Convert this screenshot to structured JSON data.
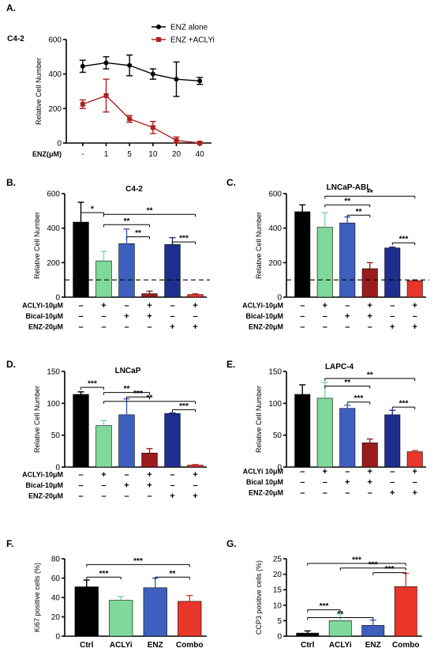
{
  "chart_data": [
    {
      "panel": "A.",
      "type": "line",
      "title": "C4-2",
      "ylabel": "Relative Cell Number",
      "xlabel": "ENZ(μM)",
      "categories": [
        "-",
        "1",
        "5",
        "10",
        "20",
        "40"
      ],
      "ylim": [
        0,
        600
      ],
      "yticks": [
        "0",
        "200",
        "400",
        "600"
      ],
      "series": [
        {
          "name": "ENZ alone",
          "color": "#000000",
          "marker": "circle",
          "values": [
            445,
            465,
            450,
            400,
            370,
            360
          ],
          "errors": [
            35,
            35,
            60,
            30,
            100,
            20
          ]
        },
        {
          "name": "ENZ +ACLYi",
          "color": "#b02020",
          "marker": "square",
          "values": [
            225,
            275,
            140,
            90,
            15,
            0
          ],
          "errors": [
            25,
            95,
            20,
            35,
            20,
            5
          ]
        }
      ]
    },
    {
      "panel": "B.",
      "type": "bar",
      "title": "C4-2",
      "ylabel": "Relative Cell Number",
      "ylim": [
        0,
        600
      ],
      "yticks": [
        "0",
        "200",
        "400",
        "600"
      ],
      "dashed_ref": 100,
      "values": [
        435,
        210,
        310,
        20,
        305,
        15
      ],
      "errors": [
        115,
        55,
        85,
        15,
        40,
        5
      ],
      "colors": [
        "#000000",
        "#7fd99a",
        "#3f5fbf",
        "#9b1c1c",
        "#1f2f8f",
        "#e8362a"
      ],
      "treatments": [
        {
          "label": "ACLYi-10μM",
          "marks": [
            "–",
            "+",
            "–",
            "+",
            "–",
            "+"
          ]
        },
        {
          "label": "Bical-10μM",
          "marks": [
            "–",
            "–",
            "+",
            "+",
            "–",
            "–"
          ]
        },
        {
          "label": "ENZ-20μM",
          "marks": [
            "–",
            "–",
            "–",
            "–",
            "+",
            "+"
          ]
        }
      ],
      "comparisons": [
        {
          "from": 0,
          "to": 1,
          "y": 490,
          "label": "*"
        },
        {
          "from": 1,
          "to": 3,
          "y": 420,
          "label": "**"
        },
        {
          "from": 2,
          "to": 3,
          "y": 350,
          "label": "**"
        },
        {
          "from": 1,
          "to": 5,
          "y": 480,
          "label": "**"
        },
        {
          "from": 4,
          "to": 5,
          "y": 320,
          "label": "***"
        }
      ]
    },
    {
      "panel": "C.",
      "type": "bar",
      "title": "LNCaP-ABL",
      "ylabel": "Relative Cell Number",
      "ylim": [
        0,
        600
      ],
      "yticks": [
        "0",
        "200",
        "400",
        "600"
      ],
      "dashed_ref": 100,
      "values": [
        495,
        405,
        430,
        165,
        285,
        95
      ],
      "errors": [
        40,
        85,
        35,
        35,
        5,
        5
      ],
      "colors": [
        "#000000",
        "#7fd99a",
        "#3f5fbf",
        "#9b1c1c",
        "#1f2f8f",
        "#e8362a"
      ],
      "treatments": [
        {
          "label": "ACLYi-10μM",
          "marks": [
            "–",
            "+",
            "–",
            "+",
            "–",
            "+"
          ]
        },
        {
          "label": "Bical-10μM",
          "marks": [
            "–",
            "–",
            "+",
            "+",
            "–",
            "–"
          ]
        },
        {
          "label": "ENZ-20μM",
          "marks": [
            "–",
            "–",
            "–",
            "–",
            "+",
            "+"
          ]
        }
      ],
      "comparisons": [
        {
          "from": 1,
          "to": 5,
          "y": 585,
          "label": "**"
        },
        {
          "from": 1,
          "to": 3,
          "y": 535,
          "label": "**"
        },
        {
          "from": 2,
          "to": 3,
          "y": 475,
          "label": "**"
        },
        {
          "from": 4,
          "to": 5,
          "y": 315,
          "label": "***"
        }
      ]
    },
    {
      "panel": "D.",
      "type": "bar",
      "title": "LNCaP",
      "ylabel": "Relative Cell Number",
      "ylim": [
        0,
        150
      ],
      "yticks": [
        "0",
        "50",
        "100",
        "150"
      ],
      "values": [
        114,
        65,
        82,
        22,
        84,
        3
      ],
      "errors": [
        4,
        8,
        25,
        7,
        1,
        1
      ],
      "colors": [
        "#000000",
        "#7fd99a",
        "#3f5fbf",
        "#9b1c1c",
        "#1f2f8f",
        "#e8362a"
      ],
      "treatments": [
        {
          "label": "ACLYi-10μM",
          "marks": [
            "–",
            "+",
            "–",
            "+",
            "–",
            "+"
          ]
        },
        {
          "label": "Bical-10μM",
          "marks": [
            "–",
            "–",
            "+",
            "+",
            "–",
            "–"
          ]
        },
        {
          "label": "ENZ-20μM",
          "marks": [
            "–",
            "–",
            "–",
            "–",
            "+",
            "+"
          ]
        }
      ],
      "comparisons": [
        {
          "from": 0,
          "to": 1,
          "y": 125,
          "label": "***"
        },
        {
          "from": 1,
          "to": 3,
          "y": 117,
          "label": "**"
        },
        {
          "from": 1,
          "to": 5,
          "y": 103,
          "label": "**"
        },
        {
          "from": 2,
          "to": 3,
          "y": 110,
          "label": "***"
        },
        {
          "from": 4,
          "to": 5,
          "y": 90,
          "label": "***"
        }
      ]
    },
    {
      "panel": "E.",
      "type": "bar",
      "title": "LAPC-4",
      "ylabel": "Relative Cell Number",
      "ylim": [
        0,
        150
      ],
      "yticks": [
        "0",
        "50",
        "100",
        "150"
      ],
      "values": [
        114,
        108,
        92,
        38,
        82,
        24
      ],
      "errors": [
        15,
        25,
        5,
        6,
        7,
        2
      ],
      "colors": [
        "#000000",
        "#7fd99a",
        "#3f5fbf",
        "#9b1c1c",
        "#1f2f8f",
        "#e8362a"
      ],
      "treatments": [
        {
          "label": "ACLYi 10μM",
          "marks": [
            "–",
            "+",
            "–",
            "+",
            "–",
            "+"
          ]
        },
        {
          "label": "Bical 10μM",
          "marks": [
            "–",
            "–",
            "+",
            "+",
            "–",
            "–"
          ]
        },
        {
          "label": "ENZ-20μM",
          "marks": [
            "–",
            "–",
            "–",
            "–",
            "+",
            "+"
          ]
        }
      ],
      "comparisons": [
        {
          "from": 1,
          "to": 5,
          "y": 139,
          "label": "**"
        },
        {
          "from": 1,
          "to": 3,
          "y": 127,
          "label": "**"
        },
        {
          "from": 2,
          "to": 3,
          "y": 102,
          "label": "***"
        },
        {
          "from": 4,
          "to": 5,
          "y": 94,
          "label": "***"
        }
      ]
    },
    {
      "panel": "F.",
      "type": "bar",
      "ylabel": "Ki67 positive cells (%)",
      "ylim": [
        0,
        80
      ],
      "yticks": [
        "0",
        "20",
        "40",
        "60",
        "80"
      ],
      "categories": [
        "Ctrl",
        "ACLYi",
        "ENZ",
        "Combo"
      ],
      "values": [
        51,
        37,
        50,
        36
      ],
      "errors": [
        7,
        4,
        10,
        6
      ],
      "colors": [
        "#000000",
        "#7fd99a",
        "#3f5fbf",
        "#e8362a"
      ],
      "comparisons": [
        {
          "from": 0,
          "to": 3,
          "y": 74,
          "label": "***"
        },
        {
          "from": 0,
          "to": 1,
          "y": 61,
          "label": "***"
        },
        {
          "from": 2,
          "to": 3,
          "y": 61,
          "label": "**"
        }
      ]
    },
    {
      "panel": "G.",
      "type": "bar",
      "ylabel": "CCP3 positive cells (%)",
      "ylim": [
        0,
        25
      ],
      "yticks": [
        "0",
        "5",
        "10",
        "15",
        "20",
        "25"
      ],
      "categories": [
        "Ctrl",
        "ACLYi",
        "ENZ",
        "Combo"
      ],
      "values": [
        1,
        5,
        3.5,
        16
      ],
      "errors": [
        0.7,
        2.2,
        1.7,
        4.3
      ],
      "colors": [
        "#000000",
        "#7fd99a",
        "#3f5fbf",
        "#e8362a"
      ],
      "comparisons": [
        {
          "from": 0,
          "to": 3,
          "y": 23.5,
          "label": "***"
        },
        {
          "from": 1,
          "to": 3,
          "y": 22,
          "label": "***"
        },
        {
          "from": 2,
          "to": 3,
          "y": 20.5,
          "label": "***"
        },
        {
          "from": 0,
          "to": 1,
          "y": 8.5,
          "label": "***"
        },
        {
          "from": 0,
          "to": 2,
          "y": 6,
          "label": "**"
        }
      ]
    }
  ]
}
